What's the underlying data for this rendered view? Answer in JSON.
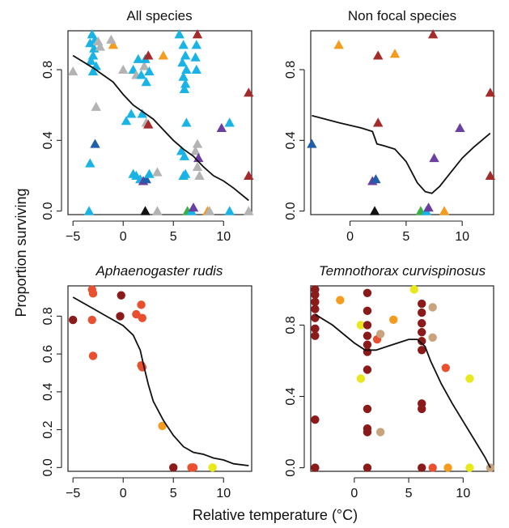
{
  "xlabel": "Relative temperature (°C)",
  "ylabel": "Proportion surviving",
  "chart_data": [
    {
      "type": "scatter",
      "title": "All species",
      "title_italic": false,
      "marker": "triangle",
      "xlim": [
        -5.5,
        12.8
      ],
      "ylim": [
        -0.02,
        1.02
      ],
      "xticks": [
        -5,
        0,
        5,
        10
      ],
      "yticks": [
        0.0,
        0.4,
        0.8
      ],
      "ytick_labels": [
        "0.0",
        "0.4",
        "0.8"
      ],
      "colors": {
        "teal": "#1ab3e6",
        "grey": "#b3b3b3",
        "orange": "#f39c1f",
        "darkred": "#a52a2a",
        "purple": "#6a3fa0",
        "navy": "#1f5ea8",
        "black": "#111111",
        "green": "#3cb043"
      },
      "points": [
        {
          "x": -3.1,
          "y": 1.0,
          "c": "teal"
        },
        {
          "x": -2.8,
          "y": 0.97,
          "c": "teal"
        },
        {
          "x": -3.3,
          "y": 0.95,
          "c": "teal"
        },
        {
          "x": -2.9,
          "y": 0.92,
          "c": "teal"
        },
        {
          "x": -3.0,
          "y": 0.88,
          "c": "teal"
        },
        {
          "x": -3.2,
          "y": 0.85,
          "c": "teal"
        },
        {
          "x": -2.7,
          "y": 0.82,
          "c": "teal"
        },
        {
          "x": -3.0,
          "y": 0.79,
          "c": "teal"
        },
        {
          "x": -3.3,
          "y": 0.27,
          "c": "teal"
        },
        {
          "x": -3.4,
          "y": 0.0,
          "c": "teal"
        },
        {
          "x": -2.5,
          "y": 0.96,
          "c": "grey"
        },
        {
          "x": -2.3,
          "y": 0.93,
          "c": "grey"
        },
        {
          "x": -5.0,
          "y": 0.79,
          "c": "grey"
        },
        {
          "x": -2.7,
          "y": 0.59,
          "c": "grey"
        },
        {
          "x": -1.0,
          "y": 0.94,
          "c": "orange"
        },
        {
          "x": -1.2,
          "y": 0.97,
          "c": "grey"
        },
        {
          "x": -2.8,
          "y": 0.38,
          "c": "navy"
        },
        {
          "x": 0.0,
          "y": 0.8,
          "c": "grey"
        },
        {
          "x": 0.3,
          "y": 0.51,
          "c": "teal"
        },
        {
          "x": 0.8,
          "y": 0.55,
          "c": "teal"
        },
        {
          "x": 1.0,
          "y": 0.8,
          "c": "teal"
        },
        {
          "x": 1.3,
          "y": 0.77,
          "c": "grey"
        },
        {
          "x": 1.5,
          "y": 0.86,
          "c": "teal"
        },
        {
          "x": 1.8,
          "y": 0.77,
          "c": "teal"
        },
        {
          "x": 2.1,
          "y": 0.82,
          "c": "grey"
        },
        {
          "x": 2.2,
          "y": 0.86,
          "c": "teal"
        },
        {
          "x": 2.5,
          "y": 0.88,
          "c": "darkred"
        },
        {
          "x": 2.6,
          "y": 0.79,
          "c": "teal"
        },
        {
          "x": 2.3,
          "y": 0.73,
          "c": "teal"
        },
        {
          "x": 1.9,
          "y": 0.55,
          "c": "teal"
        },
        {
          "x": 2.3,
          "y": 0.5,
          "c": "grey"
        },
        {
          "x": 2.5,
          "y": 0.49,
          "c": "darkred"
        },
        {
          "x": 1.0,
          "y": 0.21,
          "c": "teal"
        },
        {
          "x": 1.3,
          "y": 0.2,
          "c": "teal"
        },
        {
          "x": 1.7,
          "y": 0.18,
          "c": "teal"
        },
        {
          "x": 2.0,
          "y": 0.17,
          "c": "purple"
        },
        {
          "x": 2.3,
          "y": 0.18,
          "c": "navy"
        },
        {
          "x": 2.6,
          "y": 0.21,
          "c": "teal"
        },
        {
          "x": 3.4,
          "y": 0.22,
          "c": "grey"
        },
        {
          "x": 2.2,
          "y": 0.0,
          "c": "black"
        },
        {
          "x": 3.4,
          "y": 0.0,
          "c": "grey"
        },
        {
          "x": 4.0,
          "y": 0.88,
          "c": "orange"
        },
        {
          "x": 5.6,
          "y": 1.0,
          "c": "teal"
        },
        {
          "x": 6.0,
          "y": 0.94,
          "c": "teal"
        },
        {
          "x": 6.2,
          "y": 0.88,
          "c": "teal"
        },
        {
          "x": 5.9,
          "y": 0.84,
          "c": "teal"
        },
        {
          "x": 6.3,
          "y": 0.8,
          "c": "teal"
        },
        {
          "x": 6.0,
          "y": 0.76,
          "c": "teal"
        },
        {
          "x": 6.2,
          "y": 0.72,
          "c": "teal"
        },
        {
          "x": 6.1,
          "y": 0.69,
          "c": "teal"
        },
        {
          "x": 6.3,
          "y": 0.5,
          "c": "teal"
        },
        {
          "x": 5.8,
          "y": 0.34,
          "c": "teal"
        },
        {
          "x": 6.1,
          "y": 0.31,
          "c": "teal"
        },
        {
          "x": 6.2,
          "y": 0.21,
          "c": "teal"
        },
        {
          "x": 6.0,
          "y": 0.2,
          "c": "teal"
        },
        {
          "x": 6.4,
          "y": 0.0,
          "c": "green"
        },
        {
          "x": 6.8,
          "y": 0.0,
          "c": "teal"
        },
        {
          "x": 7.0,
          "y": 0.02,
          "c": "purple"
        },
        {
          "x": 7.4,
          "y": 1.0,
          "c": "darkred"
        },
        {
          "x": 7.3,
          "y": 0.94,
          "c": "teal"
        },
        {
          "x": 7.2,
          "y": 0.87,
          "c": "teal"
        },
        {
          "x": 7.3,
          "y": 0.8,
          "c": "teal"
        },
        {
          "x": 7.4,
          "y": 0.38,
          "c": "grey"
        },
        {
          "x": 7.2,
          "y": 0.34,
          "c": "grey"
        },
        {
          "x": 7.5,
          "y": 0.3,
          "c": "purple"
        },
        {
          "x": 7.4,
          "y": 0.25,
          "c": "grey"
        },
        {
          "x": 7.6,
          "y": 0.2,
          "c": "grey"
        },
        {
          "x": 8.4,
          "y": 0.0,
          "c": "orange"
        },
        {
          "x": 8.6,
          "y": 0.0,
          "c": "grey"
        },
        {
          "x": 9.8,
          "y": 0.47,
          "c": "purple"
        },
        {
          "x": 10.6,
          "y": 0.5,
          "c": "teal"
        },
        {
          "x": 10.6,
          "y": 0.0,
          "c": "teal"
        },
        {
          "x": 12.5,
          "y": 0.67,
          "c": "darkred"
        },
        {
          "x": 12.5,
          "y": 0.2,
          "c": "darkred"
        },
        {
          "x": 12.5,
          "y": 0.0,
          "c": "grey"
        }
      ],
      "fit": [
        [
          -5,
          0.88
        ],
        [
          -3,
          0.81
        ],
        [
          -1,
          0.73
        ],
        [
          0,
          0.66
        ],
        [
          1,
          0.6
        ],
        [
          2,
          0.56
        ],
        [
          3,
          0.52
        ],
        [
          4,
          0.46
        ],
        [
          5,
          0.4
        ],
        [
          6,
          0.35
        ],
        [
          7,
          0.31
        ],
        [
          8,
          0.25
        ],
        [
          9,
          0.2
        ],
        [
          10,
          0.17
        ],
        [
          11,
          0.13
        ],
        [
          12.5,
          0.06
        ]
      ]
    },
    {
      "type": "scatter",
      "title": "Non focal species",
      "title_italic": false,
      "marker": "triangle",
      "xlim": [
        -3.5,
        12.8
      ],
      "ylim": [
        -0.02,
        1.02
      ],
      "xticks": [
        0,
        5,
        10
      ],
      "yticks": [
        0.0,
        0.4,
        0.8
      ],
      "ytick_labels": [
        "0.0",
        "0.4",
        "0.8"
      ],
      "colors": {
        "orange": "#f39c1f",
        "darkred": "#a52a2a",
        "purple": "#6a3fa0",
        "navy": "#1f5ea8",
        "black": "#111111",
        "green": "#3cb043",
        "teal": "#1ab3e6"
      },
      "points": [
        {
          "x": -3.4,
          "y": 0.38,
          "c": "navy"
        },
        {
          "x": -1.0,
          "y": 0.94,
          "c": "orange"
        },
        {
          "x": 2.5,
          "y": 0.88,
          "c": "darkred"
        },
        {
          "x": 4.0,
          "y": 0.89,
          "c": "orange"
        },
        {
          "x": 2.5,
          "y": 0.5,
          "c": "darkred"
        },
        {
          "x": 2.0,
          "y": 0.17,
          "c": "purple"
        },
        {
          "x": 2.3,
          "y": 0.18,
          "c": "navy"
        },
        {
          "x": 2.2,
          "y": 0.0,
          "c": "black"
        },
        {
          "x": 6.3,
          "y": 0.0,
          "c": "green"
        },
        {
          "x": 6.8,
          "y": 0.0,
          "c": "teal"
        },
        {
          "x": 7.0,
          "y": 0.02,
          "c": "purple"
        },
        {
          "x": 7.4,
          "y": 1.0,
          "c": "darkred"
        },
        {
          "x": 7.5,
          "y": 0.3,
          "c": "purple"
        },
        {
          "x": 8.4,
          "y": 0.0,
          "c": "orange"
        },
        {
          "x": 9.8,
          "y": 0.47,
          "c": "purple"
        },
        {
          "x": 12.5,
          "y": 0.67,
          "c": "darkred"
        },
        {
          "x": 12.5,
          "y": 0.2,
          "c": "darkred"
        }
      ],
      "fit": [
        [
          -3.4,
          0.54
        ],
        [
          -1,
          0.5
        ],
        [
          1,
          0.47
        ],
        [
          2,
          0.45
        ],
        [
          2.4,
          0.38
        ],
        [
          3,
          0.37
        ],
        [
          4,
          0.35
        ],
        [
          5,
          0.28
        ],
        [
          6,
          0.16
        ],
        [
          6.7,
          0.11
        ],
        [
          7.3,
          0.1
        ],
        [
          8,
          0.14
        ],
        [
          9,
          0.22
        ],
        [
          10,
          0.3
        ],
        [
          11,
          0.36
        ],
        [
          12.5,
          0.44
        ]
      ]
    },
    {
      "type": "scatter",
      "title": "Aphaenogaster rudis",
      "title_italic": true,
      "marker": "circle",
      "xlim": [
        -5.5,
        12.8
      ],
      "ylim": [
        -0.02,
        0.96
      ],
      "xticks": [
        -5,
        0,
        5,
        10
      ],
      "yticks": [
        0.0,
        0.2,
        0.4,
        0.6,
        0.8
      ],
      "ytick_labels": [
        "0.0",
        "0.2",
        "0.4",
        "0.6",
        "0.8"
      ],
      "colors": {
        "maroon": "#8b1a1a",
        "red": "#e8502f",
        "orange": "#f39c1f",
        "yellow": "#e8e81c"
      },
      "points": [
        {
          "x": -5.0,
          "y": 0.78,
          "c": "maroon"
        },
        {
          "x": -3.1,
          "y": 0.94,
          "c": "red"
        },
        {
          "x": -3.0,
          "y": 0.92,
          "c": "red"
        },
        {
          "x": -3.1,
          "y": 0.78,
          "c": "red"
        },
        {
          "x": -3.0,
          "y": 0.59,
          "c": "red"
        },
        {
          "x": -0.2,
          "y": 0.91,
          "c": "maroon"
        },
        {
          "x": -0.3,
          "y": 0.8,
          "c": "maroon"
        },
        {
          "x": 1.3,
          "y": 0.81,
          "c": "red"
        },
        {
          "x": 1.8,
          "y": 0.86,
          "c": "red"
        },
        {
          "x": 1.9,
          "y": 0.79,
          "c": "red"
        },
        {
          "x": 1.8,
          "y": 0.54,
          "c": "red"
        },
        {
          "x": 1.9,
          "y": 0.53,
          "c": "red"
        },
        {
          "x": 3.9,
          "y": 0.22,
          "c": "orange"
        },
        {
          "x": 5.0,
          "y": 0.0,
          "c": "maroon"
        },
        {
          "x": 6.8,
          "y": 0.0,
          "c": "red"
        },
        {
          "x": 7.0,
          "y": 0.0,
          "c": "red"
        },
        {
          "x": 8.9,
          "y": 0.0,
          "c": "yellow"
        }
      ],
      "fit": [
        [
          -5,
          0.9
        ],
        [
          -4,
          0.87
        ],
        [
          -3,
          0.84
        ],
        [
          -2,
          0.81
        ],
        [
          -1,
          0.78
        ],
        [
          0,
          0.75
        ],
        [
          1,
          0.7
        ],
        [
          1.7,
          0.62
        ],
        [
          2,
          0.55
        ],
        [
          2.5,
          0.44
        ],
        [
          3,
          0.35
        ],
        [
          4,
          0.25
        ],
        [
          5,
          0.17
        ],
        [
          6,
          0.11
        ],
        [
          7,
          0.08
        ],
        [
          8,
          0.07
        ],
        [
          9,
          0.05
        ],
        [
          10,
          0.04
        ],
        [
          11,
          0.02
        ],
        [
          12.5,
          0.01
        ]
      ]
    },
    {
      "type": "scatter",
      "title": "Temnothorax curvispinosus",
      "title_italic": true,
      "marker": "circle",
      "xlim": [
        -4.0,
        12.8
      ],
      "ylim": [
        -0.02,
        1.02
      ],
      "xticks": [
        0,
        5,
        10
      ],
      "yticks": [
        0.0,
        0.4,
        0.8
      ],
      "ytick_labels": [
        "0.0",
        "0.4",
        "0.8"
      ],
      "colors": {
        "maroon": "#8b1a1a",
        "red": "#e8502f",
        "orange": "#f39c1f",
        "yellow": "#e8e81c",
        "tan": "#c9a37e"
      },
      "points": [
        {
          "x": -3.6,
          "y": 1.0,
          "c": "maroon"
        },
        {
          "x": -3.6,
          "y": 0.97,
          "c": "maroon"
        },
        {
          "x": -3.6,
          "y": 0.93,
          "c": "maroon"
        },
        {
          "x": -3.6,
          "y": 0.89,
          "c": "maroon"
        },
        {
          "x": -3.6,
          "y": 0.84,
          "c": "maroon"
        },
        {
          "x": -3.6,
          "y": 0.78,
          "c": "maroon"
        },
        {
          "x": -3.6,
          "y": 0.74,
          "c": "maroon"
        },
        {
          "x": -3.6,
          "y": 0.27,
          "c": "maroon"
        },
        {
          "x": -3.6,
          "y": 0.0,
          "c": "maroon"
        },
        {
          "x": -1.3,
          "y": 0.94,
          "c": "orange"
        },
        {
          "x": 0.6,
          "y": 0.8,
          "c": "yellow"
        },
        {
          "x": 0.6,
          "y": 0.5,
          "c": "yellow"
        },
        {
          "x": 1.2,
          "y": 0.98,
          "c": "maroon"
        },
        {
          "x": 1.2,
          "y": 0.88,
          "c": "maroon"
        },
        {
          "x": 1.2,
          "y": 0.8,
          "c": "maroon"
        },
        {
          "x": 1.2,
          "y": 0.74,
          "c": "maroon"
        },
        {
          "x": 1.2,
          "y": 0.69,
          "c": "maroon"
        },
        {
          "x": 1.2,
          "y": 0.65,
          "c": "maroon"
        },
        {
          "x": 1.2,
          "y": 0.55,
          "c": "maroon"
        },
        {
          "x": 1.2,
          "y": 0.33,
          "c": "maroon"
        },
        {
          "x": 1.2,
          "y": 0.22,
          "c": "maroon"
        },
        {
          "x": 1.2,
          "y": 0.2,
          "c": "maroon"
        },
        {
          "x": 1.2,
          "y": 0.0,
          "c": "maroon"
        },
        {
          "x": 2.1,
          "y": 0.72,
          "c": "red"
        },
        {
          "x": 2.4,
          "y": 0.75,
          "c": "tan"
        },
        {
          "x": 2.4,
          "y": 0.2,
          "c": "tan"
        },
        {
          "x": 3.6,
          "y": 0.83,
          "c": "orange"
        },
        {
          "x": 5.5,
          "y": 1.0,
          "c": "yellow"
        },
        {
          "x": 6.2,
          "y": 0.92,
          "c": "maroon"
        },
        {
          "x": 6.2,
          "y": 0.87,
          "c": "maroon"
        },
        {
          "x": 6.2,
          "y": 0.81,
          "c": "maroon"
        },
        {
          "x": 6.2,
          "y": 0.76,
          "c": "maroon"
        },
        {
          "x": 6.2,
          "y": 0.71,
          "c": "maroon"
        },
        {
          "x": 6.2,
          "y": 0.66,
          "c": "maroon"
        },
        {
          "x": 6.2,
          "y": 0.36,
          "c": "maroon"
        },
        {
          "x": 6.2,
          "y": 0.33,
          "c": "maroon"
        },
        {
          "x": 6.2,
          "y": 0.0,
          "c": "maroon"
        },
        {
          "x": 7.2,
          "y": 0.9,
          "c": "tan"
        },
        {
          "x": 7.2,
          "y": 0.73,
          "c": "tan"
        },
        {
          "x": 7.2,
          "y": 0.0,
          "c": "red"
        },
        {
          "x": 8.4,
          "y": 0.56,
          "c": "red"
        },
        {
          "x": 8.6,
          "y": 0.0,
          "c": "orange"
        },
        {
          "x": 10.6,
          "y": 0.5,
          "c": "yellow"
        },
        {
          "x": 10.6,
          "y": 0.0,
          "c": "yellow"
        },
        {
          "x": 12.5,
          "y": 0.0,
          "c": "tan"
        }
      ],
      "fit": [
        [
          -3.6,
          0.86
        ],
        [
          -2,
          0.8
        ],
        [
          -1,
          0.75
        ],
        [
          0,
          0.7
        ],
        [
          1,
          0.66
        ],
        [
          2,
          0.66
        ],
        [
          3,
          0.68
        ],
        [
          4,
          0.7
        ],
        [
          5,
          0.72
        ],
        [
          5.8,
          0.72
        ],
        [
          6.5,
          0.68
        ],
        [
          7,
          0.6
        ],
        [
          8,
          0.47
        ],
        [
          9,
          0.36
        ],
        [
          10,
          0.26
        ],
        [
          11,
          0.16
        ],
        [
          12,
          0.06
        ],
        [
          12.5,
          0.0
        ]
      ]
    }
  ]
}
